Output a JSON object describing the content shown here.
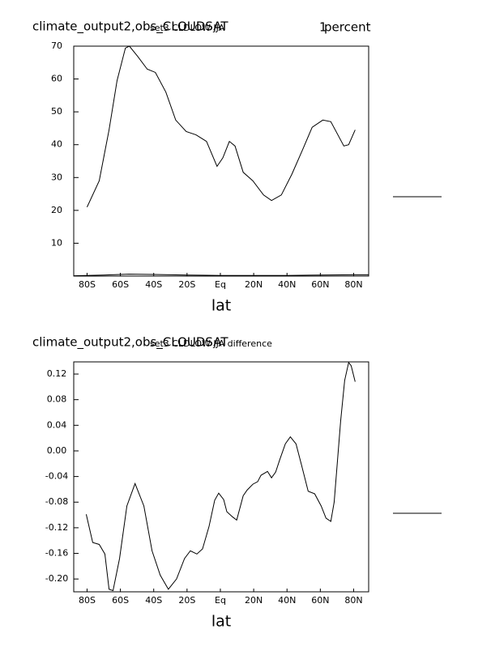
{
  "chart_data": [
    {
      "type": "line",
      "title": "climate_output2,obs_CLOUDSAT",
      "subtitle": "set3 CLDLOW JJA",
      "annotation": "1",
      "units": "percent",
      "x_label": "lat",
      "xlim": [
        -88,
        89
      ],
      "xticks": [
        {
          "value": -80,
          "label": "80S"
        },
        {
          "value": -60,
          "label": "60S"
        },
        {
          "value": -40,
          "label": "40S"
        },
        {
          "value": -20,
          "label": "20S"
        },
        {
          "value": 0,
          "label": "Eq"
        },
        {
          "value": 20,
          "label": "20N"
        },
        {
          "value": 40,
          "label": "40N"
        },
        {
          "value": 60,
          "label": "60N"
        },
        {
          "value": 80,
          "label": "80N"
        }
      ],
      "ylim": [
        0,
        70
      ],
      "yticks": [
        10,
        20,
        30,
        40,
        50,
        60,
        70
      ],
      "series": [
        {
          "color": "#000000",
          "x": [
            -80,
            -72.7,
            -66.8,
            -62,
            -57,
            -54.6,
            -49.8,
            -43.9,
            -39,
            -32.7,
            -26.8,
            -20.5,
            -14.6,
            -8.3,
            -2,
            1.5,
            5.4,
            8.8,
            13.7,
            19.5,
            25.9,
            30.7,
            36.6,
            42.9,
            49.3,
            55.1,
            61.5,
            66.3,
            74.1,
            77,
            80.9
          ],
          "values": [
            21,
            29,
            44.5,
            59.5,
            69.4,
            70,
            67,
            63,
            62,
            56,
            47.5,
            44,
            43,
            41,
            33.4,
            36,
            41,
            39.6,
            31.6,
            29,
            24.7,
            23,
            24.7,
            31,
            38.4,
            45.3,
            47.5,
            47,
            39.6,
            40,
            44.5
          ]
        },
        {
          "color": "#000000",
          "x": [
            -88,
            -70,
            -55,
            -40,
            -20,
            0,
            20,
            40,
            60,
            80,
            89
          ],
          "values": [
            0.1,
            0.3,
            0.6,
            0.5,
            0.3,
            0.2,
            0.2,
            0.2,
            0.3,
            0.4,
            0.4
          ]
        }
      ]
    },
    {
      "type": "line",
      "title": "climate_output2,obs_CLOUDSAT",
      "subtitle": "set3 CLDLOW JJA difference",
      "x_label": "lat",
      "xlim": [
        -88,
        89
      ],
      "xticks": [
        {
          "value": -80,
          "label": "80S"
        },
        {
          "value": -60,
          "label": "60S"
        },
        {
          "value": -40,
          "label": "40S"
        },
        {
          "value": -20,
          "label": "20S"
        },
        {
          "value": 0,
          "label": "Eq"
        },
        {
          "value": 20,
          "label": "20N"
        },
        {
          "value": 40,
          "label": "40N"
        },
        {
          "value": 60,
          "label": "60N"
        },
        {
          "value": 80,
          "label": "80N"
        }
      ],
      "ylim": [
        -0.22,
        0.139
      ],
      "yticks": [
        0.12,
        0.08,
        0.04,
        {
          "value": 0,
          "label": "0.00"
        },
        -0.04,
        -0.08,
        -0.12,
        -0.16,
        {
          "value": -0.2,
          "label": "-0.20"
        }
      ],
      "series": [
        {
          "color": "#000000",
          "x": [
            -80.5,
            -76.6,
            -72.7,
            -69.3,
            -66.8,
            -64.4,
            -60.5,
            -56.1,
            -51.2,
            -45.9,
            -41,
            -36.1,
            -31.2,
            -26.3,
            -21.5,
            -18,
            -14.1,
            -10.7,
            -6.8,
            -3.4,
            -1,
            2,
            3.9,
            7.3,
            9.8,
            13.7,
            16.1,
            19.5,
            22.4,
            24.4,
            28.3,
            30.7,
            33.2,
            35.6,
            39,
            42,
            45.4,
            48.8,
            52.7,
            56.6,
            60.5,
            63.4,
            66.3,
            68.3,
            72.2,
            74.6,
            77,
            78.5,
            80.9
          ],
          "values": [
            -0.099,
            -0.143,
            -0.146,
            -0.161,
            -0.216,
            -0.218,
            -0.168,
            -0.086,
            -0.051,
            -0.086,
            -0.156,
            -0.194,
            -0.216,
            -0.2,
            -0.168,
            -0.156,
            -0.161,
            -0.153,
            -0.118,
            -0.077,
            -0.066,
            -0.076,
            -0.095,
            -0.103,
            -0.108,
            -0.07,
            -0.061,
            -0.052,
            -0.048,
            -0.038,
            -0.032,
            -0.042,
            -0.033,
            -0.014,
            0.011,
            0.022,
            0.011,
            -0.023,
            -0.063,
            -0.067,
            -0.086,
            -0.105,
            -0.11,
            -0.08,
            0.047,
            0.11,
            0.138,
            0.133,
            0.108
          ]
        }
      ]
    }
  ]
}
